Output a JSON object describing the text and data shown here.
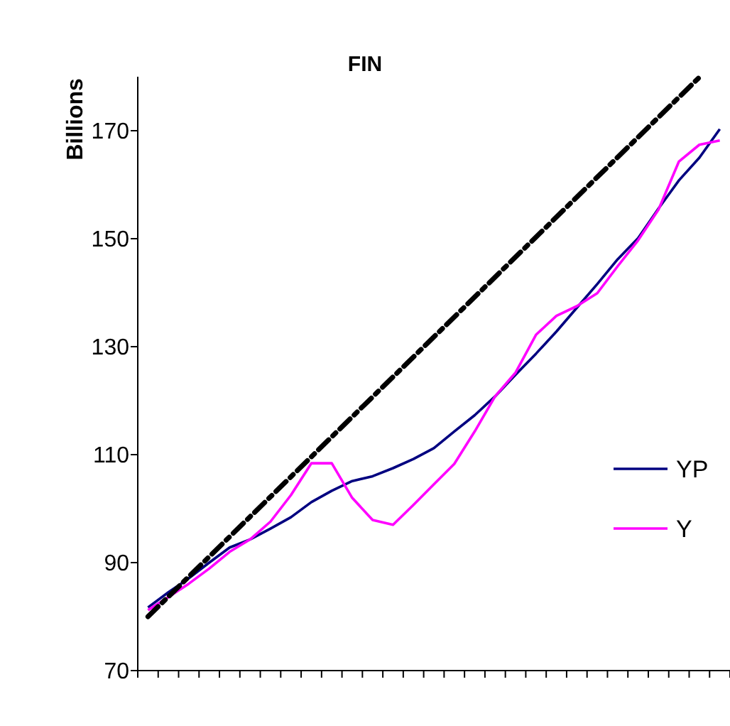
{
  "chart_data": {
    "type": "line",
    "title": "FIN",
    "ylabel": "Billions",
    "categories": [
      null,
      null,
      null,
      null,
      null,
      null,
      null,
      null,
      null,
      null,
      null,
      null,
      null,
      null,
      null,
      null,
      null,
      null,
      null,
      null,
      null,
      null,
      null,
      null,
      null,
      null,
      null,
      null,
      null
    ],
    "ylim": [
      70,
      180
    ],
    "yticks": [
      70,
      90,
      110,
      130,
      150,
      170
    ],
    "grid": false,
    "legend": "right",
    "marker": "none",
    "series": [
      {
        "name": "YP",
        "color": "#000080",
        "values": [
          81.7,
          84.5,
          87.1,
          90.0,
          92.8,
          94.3,
          96.3,
          98.4,
          101.2,
          103.3,
          105.1,
          106.0,
          107.5,
          109.2,
          111.2,
          114.3,
          117.3,
          120.8,
          124.8,
          128.7,
          132.8,
          137.2,
          141.6,
          146.2,
          150.1,
          155.6,
          160.8,
          165.0,
          170.3
        ]
      },
      {
        "name": "Y",
        "color": "#ff00ff",
        "values": [
          81.2,
          83.6,
          86.1,
          88.9,
          92.0,
          94.3,
          97.6,
          102.5,
          108.4,
          108.4,
          102.0,
          97.9,
          97.0,
          100.7,
          104.5,
          108.3,
          114.3,
          120.8,
          125.2,
          132.2,
          135.7,
          137.5,
          139.9,
          144.9,
          149.7,
          155.4,
          164.3,
          167.4,
          168.2
        ]
      },
      {
        "color": "#000000",
        "line_style": "dashed",
        "values": [
          80.0,
          83.7,
          87.4,
          91.1,
          94.8,
          98.5,
          102.2,
          105.9,
          109.6,
          113.3,
          117.0,
          120.7,
          124.4,
          128.1,
          131.8,
          135.5,
          139.2,
          142.9,
          146.6,
          150.3,
          154.0,
          157.7,
          161.4,
          165.1,
          168.8,
          172.5,
          176.2,
          179.9,
          null
        ]
      }
    ]
  }
}
